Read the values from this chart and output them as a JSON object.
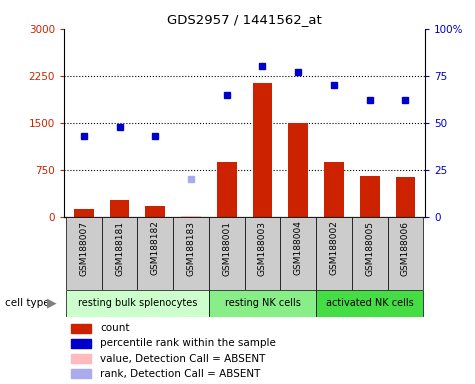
{
  "title": "GDS2957 / 1441562_at",
  "samples": [
    "GSM188007",
    "GSM188181",
    "GSM188182",
    "GSM188183",
    "GSM188001",
    "GSM188003",
    "GSM188004",
    "GSM188002",
    "GSM188005",
    "GSM188006"
  ],
  "bar_values": [
    130,
    270,
    170,
    15,
    870,
    2130,
    1500,
    870,
    660,
    630
  ],
  "bar_absent": [
    false,
    false,
    false,
    true,
    false,
    false,
    false,
    false,
    false,
    false
  ],
  "percentile_values": [
    43,
    48,
    43,
    null,
    65,
    80,
    77,
    70,
    62,
    62
  ],
  "percentile_absent_index": 3,
  "percentile_absent_value": 20,
  "ylim_left": [
    0,
    3000
  ],
  "ylim_right": [
    0,
    100
  ],
  "yticks_left": [
    0,
    750,
    1500,
    2250,
    3000
  ],
  "yticks_right": [
    0,
    25,
    50,
    75,
    100
  ],
  "ytick_labels_left": [
    "0",
    "750",
    "1500",
    "2250",
    "3000"
  ],
  "ytick_labels_right": [
    "0",
    "25",
    "50",
    "75",
    "100%"
  ],
  "groups": [
    {
      "label": "resting bulk splenocytes",
      "indices": [
        0,
        1,
        2,
        3
      ],
      "color": "#ccffcc"
    },
    {
      "label": "resting NK cells",
      "indices": [
        4,
        5,
        6
      ],
      "color": "#88ee88"
    },
    {
      "label": "activated NK cells",
      "indices": [
        7,
        8,
        9
      ],
      "color": "#44dd44"
    }
  ],
  "bar_color_present": "#cc2200",
  "bar_color_absent": "#ffbbbb",
  "dot_color_present": "#0000cc",
  "dot_color_absent": "#aaaaee",
  "plot_bg": "#ffffff",
  "sample_bg": "#cccccc",
  "legend_items": [
    {
      "label": "count",
      "color": "#cc2200"
    },
    {
      "label": "percentile rank within the sample",
      "color": "#0000cc"
    },
    {
      "label": "value, Detection Call = ABSENT",
      "color": "#ffbbbb"
    },
    {
      "label": "rank, Detection Call = ABSENT",
      "color": "#aaaaee"
    }
  ]
}
